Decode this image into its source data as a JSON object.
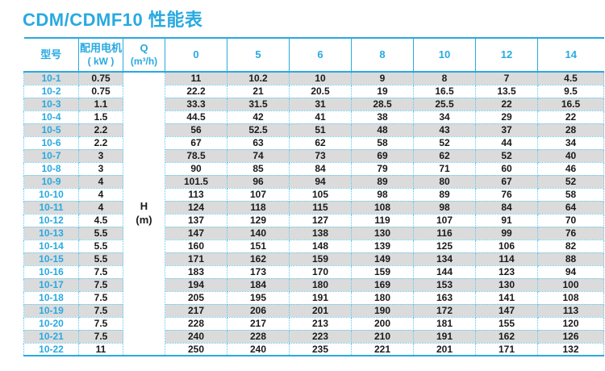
{
  "page": {
    "title": "CDM/CDMF10 性能表"
  },
  "colors": {
    "accent_blue": "#29a9e1",
    "stripe_grey": "#dbdbdb",
    "dotted_border_cyan": "#5ec9ee",
    "text_black": "#1a1a1a"
  },
  "table": {
    "header": {
      "model": "型号",
      "motor_line1": "配用电机",
      "motor_line2": "( kW )",
      "q_line1": "Q",
      "q_line2": "(m³/h)"
    },
    "h_axis": {
      "line1": "H",
      "line2": "(m)"
    }
  },
  "chart_data": {
    "type": "table",
    "title": "CDM/CDMF10 性能表",
    "x_header": "Q (m³/h)",
    "y_header": "H (m)",
    "row_header": "型号",
    "motor_header": "配用电机 ( kW )",
    "flow_values": [
      0,
      5,
      6,
      8,
      10,
      12,
      14
    ],
    "series": [
      {
        "name": "10-1",
        "motor_kw": 0.75,
        "values": [
          11,
          10.2,
          10,
          9,
          8,
          7,
          4.5
        ]
      },
      {
        "name": "10-2",
        "motor_kw": 0.75,
        "values": [
          22.2,
          21,
          20.5,
          19,
          16.5,
          13.5,
          9.5
        ]
      },
      {
        "name": "10-3",
        "motor_kw": 1.1,
        "values": [
          33.3,
          31.5,
          31,
          28.5,
          25.5,
          22,
          16.5
        ]
      },
      {
        "name": "10-4",
        "motor_kw": 1.5,
        "values": [
          44.5,
          42,
          41,
          38,
          34,
          29,
          22
        ]
      },
      {
        "name": "10-5",
        "motor_kw": 2.2,
        "values": [
          56,
          52.5,
          51,
          48,
          43,
          37,
          28
        ]
      },
      {
        "name": "10-6",
        "motor_kw": 2.2,
        "values": [
          67,
          63,
          62,
          58,
          52,
          44,
          34
        ]
      },
      {
        "name": "10-7",
        "motor_kw": 3,
        "values": [
          78.5,
          74,
          73,
          69,
          62,
          52,
          40
        ]
      },
      {
        "name": "10-8",
        "motor_kw": 3,
        "values": [
          90,
          85,
          84,
          79,
          71,
          60,
          46
        ]
      },
      {
        "name": "10-9",
        "motor_kw": 4,
        "values": [
          101.5,
          96,
          94,
          89,
          80,
          67,
          52
        ]
      },
      {
        "name": "10-10",
        "motor_kw": 4,
        "values": [
          113,
          107,
          105,
          98,
          89,
          76,
          58
        ]
      },
      {
        "name": "10-11",
        "motor_kw": 4,
        "values": [
          124,
          118,
          115,
          108,
          98,
          84,
          64
        ]
      },
      {
        "name": "10-12",
        "motor_kw": 4.5,
        "values": [
          137,
          129,
          127,
          119,
          107,
          91,
          70
        ]
      },
      {
        "name": "10-13",
        "motor_kw": 5.5,
        "values": [
          147,
          140,
          138,
          130,
          116,
          99,
          76
        ]
      },
      {
        "name": "10-14",
        "motor_kw": 5.5,
        "values": [
          160,
          151,
          148,
          139,
          125,
          106,
          82
        ]
      },
      {
        "name": "10-15",
        "motor_kw": 5.5,
        "values": [
          171,
          162,
          159,
          149,
          134,
          114,
          88
        ]
      },
      {
        "name": "10-16",
        "motor_kw": 7.5,
        "values": [
          183,
          173,
          170,
          159,
          144,
          123,
          94
        ]
      },
      {
        "name": "10-17",
        "motor_kw": 7.5,
        "values": [
          194,
          184,
          180,
          169,
          153,
          130,
          100
        ]
      },
      {
        "name": "10-18",
        "motor_kw": 7.5,
        "values": [
          205,
          195,
          191,
          180,
          163,
          141,
          108
        ]
      },
      {
        "name": "10-19",
        "motor_kw": 7.5,
        "values": [
          217,
          206,
          201,
          190,
          172,
          147,
          113
        ]
      },
      {
        "name": "10-20",
        "motor_kw": 7.5,
        "values": [
          228,
          217,
          213,
          200,
          181,
          155,
          120
        ]
      },
      {
        "name": "10-21",
        "motor_kw": 7.5,
        "values": [
          240,
          228,
          223,
          210,
          191,
          162,
          126
        ]
      },
      {
        "name": "10-22",
        "motor_kw": 11,
        "values": [
          250,
          240,
          235,
          221,
          201,
          171,
          132
        ]
      }
    ]
  }
}
